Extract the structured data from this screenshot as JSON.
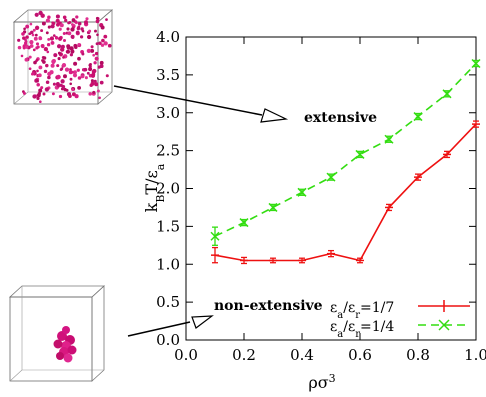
{
  "chart_data": {
    "type": "line",
    "xlabel": "ρσ",
    "xlabel_sup": "3",
    "ylabel_main": "k",
    "ylabel_sub1": "B",
    "ylabel_mid": "T/ε",
    "ylabel_sub2": "a",
    "xlim": [
      0.0,
      1.0
    ],
    "ylim": [
      0.0,
      4.0
    ],
    "xticks": [
      "0.0",
      "0.2",
      "0.4",
      "0.6",
      "0.8",
      "1.0"
    ],
    "yticks": [
      "0.0",
      "0.5",
      "1.0",
      "1.5",
      "2.0",
      "2.5",
      "3.0",
      "3.5",
      "4.0"
    ],
    "grid": false,
    "legend_position": "bottom-right",
    "series": [
      {
        "name": "εa/εr=1/7",
        "legend": {
          "e1": "ε",
          "s1": "a",
          "slash": "/ε",
          "s2": "r",
          "rest": "=1/7"
        },
        "color": "#ee1111",
        "dash": "solid",
        "marker": "plus",
        "x": [
          0.1,
          0.2,
          0.3,
          0.4,
          0.5,
          0.6,
          0.7,
          0.8,
          0.9,
          1.0
        ],
        "y": [
          1.12,
          1.05,
          1.05,
          1.05,
          1.14,
          1.05,
          1.75,
          2.15,
          2.45,
          2.85
        ],
        "err": [
          0.1,
          0.04,
          0.03,
          0.03,
          0.04,
          0.03,
          0.04,
          0.04,
          0.04,
          0.04
        ]
      },
      {
        "name": "εa/εr=1/4",
        "legend": {
          "e1": "ε",
          "s1": "a",
          "slash": "/ε",
          "s2": "r",
          "rest": "=1/4"
        },
        "color": "#33dd11",
        "dash": "dashed",
        "marker": "x",
        "x": [
          0.1,
          0.2,
          0.3,
          0.4,
          0.5,
          0.6,
          0.7,
          0.8,
          0.9,
          1.0
        ],
        "y": [
          1.37,
          1.55,
          1.75,
          1.95,
          2.15,
          2.45,
          2.65,
          2.95,
          3.25,
          3.65
        ],
        "err": [
          0.12,
          0.04,
          0.04,
          0.04,
          0.04,
          0.04,
          0.04,
          0.04,
          0.04,
          0.04
        ]
      }
    ],
    "annotations": {
      "extensive": "extensive",
      "non_extensive": "non-extensive"
    }
  }
}
